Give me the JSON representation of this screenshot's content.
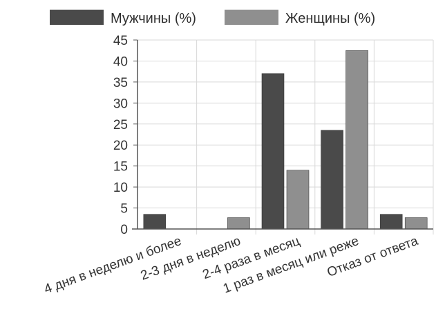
{
  "chart_data": {
    "type": "bar",
    "categories": [
      "4 дня в неделю и более",
      "2-3 дня в неделю",
      "2-4 раза в месяц",
      "1 раз в месяц или реже",
      "Отказ от ответа"
    ],
    "series": [
      {
        "name": "Мужчины (%)",
        "values": [
          3.5,
          0,
          37,
          23.5,
          3.5
        ],
        "color": "#4a4a4a"
      },
      {
        "name": "Женщины (%)",
        "values": [
          0,
          2.7,
          14,
          42.5,
          2.7
        ],
        "color": "#8f8f8f"
      }
    ],
    "yticks": [
      "0",
      "5",
      "10",
      "15",
      "20",
      "25",
      "30",
      "35",
      "40",
      "45"
    ],
    "ylim": [
      0,
      45
    ],
    "grid": true,
    "legend_position": "top",
    "title": "",
    "xlabel": "",
    "ylabel": ""
  }
}
